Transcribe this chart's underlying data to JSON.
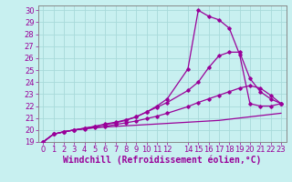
{
  "xlabel": "Windchill (Refroidissement éolien,°C)",
  "bg_color": "#c8f0f0",
  "grid_color": "#a8dada",
  "line_color": "#990099",
  "spine_color": "#888888",
  "xlim": [
    -0.5,
    23.5
  ],
  "ylim": [
    19,
    30.4
  ],
  "xticks": [
    0,
    1,
    2,
    3,
    4,
    5,
    6,
    7,
    8,
    9,
    10,
    11,
    12,
    14,
    15,
    16,
    17,
    18,
    19,
    20,
    21,
    22,
    23
  ],
  "yticks": [
    19,
    20,
    21,
    22,
    23,
    24,
    25,
    26,
    27,
    28,
    29,
    30
  ],
  "curves": [
    {
      "x": [
        0,
        1,
        2,
        3,
        4,
        5,
        6,
        7,
        8,
        9,
        10,
        11,
        12,
        13,
        14,
        15,
        16,
        17,
        18,
        19,
        20,
        21,
        22,
        23
      ],
      "y": [
        19,
        19.65,
        19.85,
        20.0,
        20.1,
        20.2,
        20.25,
        20.3,
        20.35,
        20.4,
        20.45,
        20.5,
        20.55,
        20.6,
        20.65,
        20.7,
        20.75,
        20.8,
        20.9,
        21.0,
        21.1,
        21.2,
        21.3,
        21.4
      ],
      "marker": false,
      "lw": 0.9
    },
    {
      "x": [
        0,
        1,
        2,
        3,
        4,
        5,
        6,
        7,
        8,
        9,
        10,
        11,
        12,
        14,
        15,
        16,
        17,
        18,
        19,
        20,
        21,
        22,
        23
      ],
      "y": [
        19,
        19.65,
        19.85,
        20.0,
        20.1,
        20.2,
        20.3,
        20.45,
        20.6,
        20.75,
        20.95,
        21.15,
        21.4,
        21.95,
        22.3,
        22.6,
        22.9,
        23.2,
        23.5,
        23.7,
        23.5,
        22.9,
        22.2
      ],
      "marker": true,
      "lw": 0.9
    },
    {
      "x": [
        0,
        1,
        2,
        3,
        4,
        5,
        6,
        7,
        8,
        9,
        10,
        11,
        12,
        14,
        15,
        16,
        17,
        18,
        19,
        20,
        21,
        22,
        23
      ],
      "y": [
        19,
        19.65,
        19.85,
        20.0,
        20.15,
        20.3,
        20.45,
        20.6,
        20.8,
        21.1,
        21.5,
        21.9,
        22.3,
        23.3,
        24.0,
        25.2,
        26.2,
        26.5,
        26.5,
        24.3,
        23.2,
        22.6,
        22.2
      ],
      "marker": true,
      "lw": 0.9
    },
    {
      "x": [
        0,
        1,
        2,
        3,
        4,
        5,
        6,
        7,
        8,
        9,
        10,
        11,
        12,
        14,
        15,
        16,
        17,
        18,
        19,
        20,
        21,
        22,
        23
      ],
      "y": [
        19,
        19.65,
        19.85,
        20.0,
        20.15,
        20.3,
        20.5,
        20.65,
        20.85,
        21.1,
        21.5,
        22.0,
        22.6,
        25.1,
        30.0,
        29.5,
        29.2,
        28.5,
        26.3,
        22.2,
        22.0,
        22.0,
        22.2
      ],
      "marker": true,
      "lw": 0.9
    }
  ],
  "font_size": 6,
  "xlabel_fontsize": 7
}
